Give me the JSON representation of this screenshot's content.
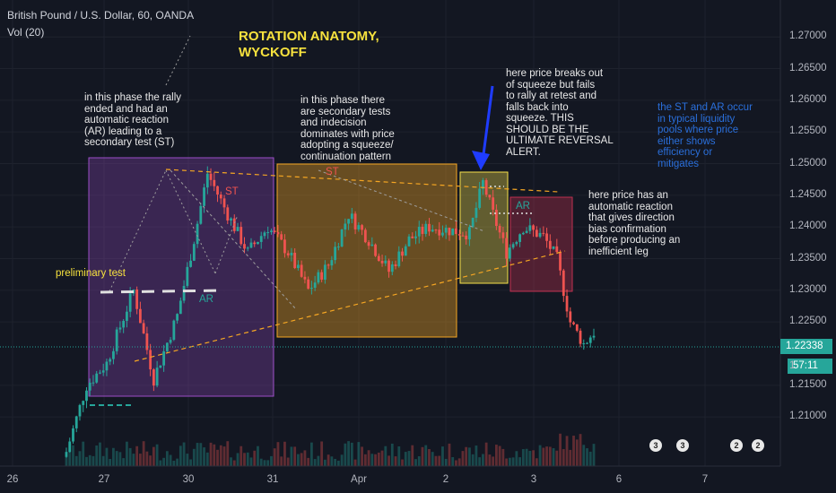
{
  "header": {
    "symbol": "British Pound / U.S. Dollar, 60, OANDA",
    "volume": "Vol (20)"
  },
  "title": "ROTATION ANATOMY,\nWYCKOFF",
  "annotations": {
    "phase1": "in this phase the rally\nended and had an\nautomatic reaction\n(AR) leading to a\nsecondary test (ST)",
    "phase2": "in this phase there\nare secondary tests\nand indecision\ndominates with price\nadopting a squeeze/\ncontinuation pattern",
    "breakout": "here price breaks out\nof squeeze but fails\nto rally at retest and\nfalls back into\nsqueeze. THIS\nSHOULD BE THE\nULTIMATE REVERSAL\nALERT.",
    "st_ar_note": "the ST and AR occur\nin typical liquidity\npools where price\neither shows\nefficiency or\nmitigates",
    "reaction": "here price has an\nautomatic reaction\nthat gives direction\nbias confirmation\nbefore producing an\ninefficient leg",
    "preliminary": "preliminary test",
    "labels": {
      "st1": "ST",
      "ar1": "AR",
      "st2": "ST",
      "ar2": "AR"
    }
  },
  "price_axis": {
    "labels": [
      "1.27000",
      "1.26500",
      "1.26000",
      "1.25500",
      "1.25000",
      "1.24500",
      "1.24000",
      "1.23500",
      "1.23000",
      "1.22500",
      "1.21500",
      "1.21000"
    ],
    "current_price": "1.22338",
    "countdown": "57:11",
    "countdown_prefix": "1"
  },
  "time_axis": {
    "labels": [
      "26",
      "27",
      "30",
      "31",
      "Apr",
      "2",
      "3",
      "6",
      "7"
    ]
  },
  "events": {
    "badge1": "3",
    "badge2": "3",
    "badge3": "2",
    "badge4": "2"
  },
  "colors": {
    "background": "#131722",
    "up": "#26a69a",
    "down": "#ef5350",
    "box_purple": "#7b3fa0",
    "box_orange": "#f5a623",
    "box_yellow": "#f5e04a",
    "box_red": "#b0304a",
    "arrow": "#1f3cff",
    "title": "#f7e23e",
    "note_blue": "#2a6fdb"
  },
  "chart_data": {
    "type": "candlestick",
    "symbol": "GBPUSD",
    "timeframe": "60",
    "ylim": [
      1.2062,
      1.273
    ],
    "x_ticks": [
      "26",
      "27",
      "30",
      "31",
      "Apr",
      "2",
      "3",
      "6",
      "7"
    ],
    "waypoints": [
      {
        "i": 0,
        "close": 1.2045
      },
      {
        "i": 6,
        "close": 1.215
      },
      {
        "i": 12,
        "close": 1.2185
      },
      {
        "i": 20,
        "close": 1.23
      },
      {
        "i": 26,
        "close": 1.216
      },
      {
        "i": 33,
        "close": 1.226
      },
      {
        "i": 38,
        "close": 1.238
      },
      {
        "i": 42,
        "close": 1.2485
      },
      {
        "i": 48,
        "close": 1.242
      },
      {
        "i": 54,
        "close": 1.236
      },
      {
        "i": 60,
        "close": 1.24
      },
      {
        "i": 66,
        "close": 1.236
      },
      {
        "i": 72,
        "close": 1.23
      },
      {
        "i": 78,
        "close": 1.234
      },
      {
        "i": 84,
        "close": 1.242
      },
      {
        "i": 90,
        "close": 1.238
      },
      {
        "i": 96,
        "close": 1.233
      },
      {
        "i": 102,
        "close": 1.238
      },
      {
        "i": 108,
        "close": 1.24
      },
      {
        "i": 114,
        "close": 1.2395
      },
      {
        "i": 120,
        "close": 1.239
      },
      {
        "i": 124,
        "close": 1.247
      },
      {
        "i": 127,
        "close": 1.242
      },
      {
        "i": 131,
        "close": 1.236
      },
      {
        "i": 136,
        "close": 1.24
      },
      {
        "i": 142,
        "close": 1.2385
      },
      {
        "i": 146,
        "close": 1.235
      },
      {
        "i": 150,
        "close": 1.225
      },
      {
        "i": 154,
        "close": 1.2215
      },
      {
        "i": 157,
        "close": 1.2234
      }
    ],
    "last_price": 1.22338
  }
}
